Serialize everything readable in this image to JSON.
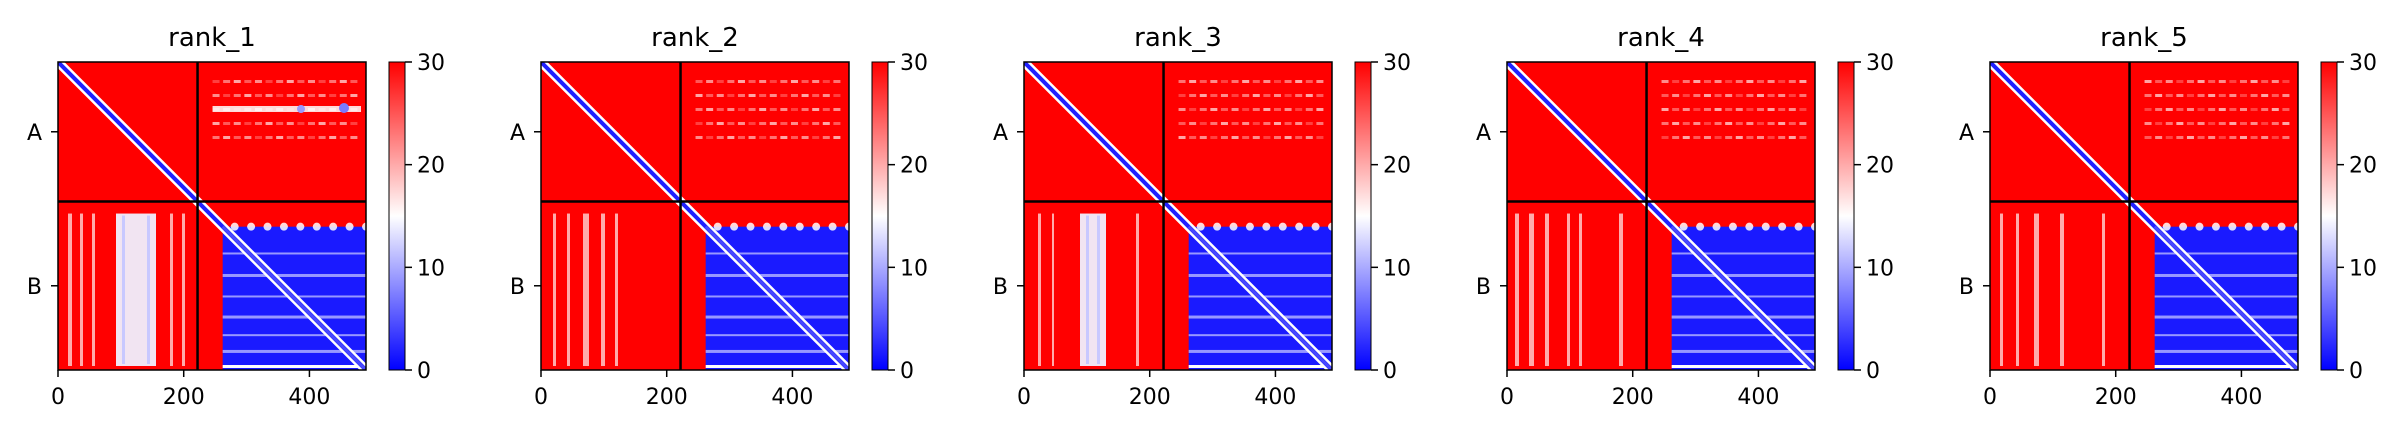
{
  "chart_data": {
    "type": "heatmap",
    "colormap": {
      "name": "bwr",
      "low": "#0000ff",
      "mid": "#ffffff",
      "high": "#ff0000",
      "range": [
        0,
        30
      ]
    },
    "chain_labels": [
      "A",
      "B"
    ],
    "chain_boundary": 222,
    "total_length": 490,
    "xticks": [
      0,
      200,
      400
    ],
    "xlim": [
      0,
      490
    ],
    "colorbar_ticks": [
      0,
      10,
      20,
      30
    ],
    "panels": [
      {
        "title": "rank_1"
      },
      {
        "title": "rank_2"
      },
      {
        "title": "rank_3"
      },
      {
        "title": "rank_4"
      },
      {
        "title": "rank_5"
      }
    ]
  }
}
